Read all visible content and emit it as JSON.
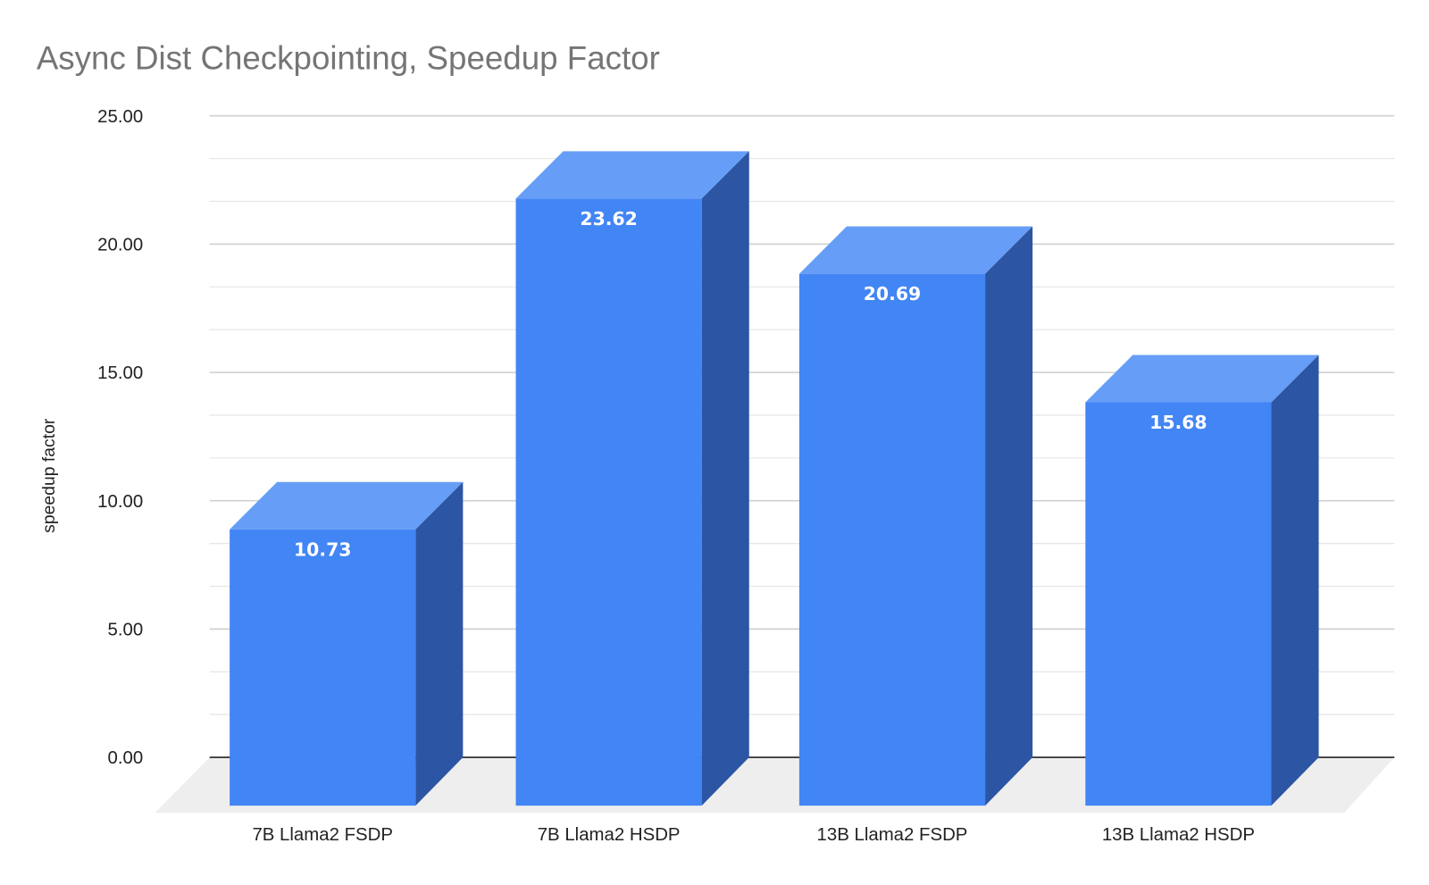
{
  "chart_data": {
    "type": "bar",
    "style": "3d",
    "title": "Async Dist Checkpointing, Speedup Factor",
    "xlabel": "",
    "ylabel": "speedup factor",
    "categories": [
      "7B Llama2 FSDP",
      "7B Llama2 HSDP",
      "13B Llama2 FSDP",
      "13B Llama2 HSDP"
    ],
    "values": [
      10.73,
      23.62,
      20.69,
      15.68
    ],
    "data_labels": [
      "10.73",
      "23.62",
      "20.69",
      "15.68"
    ],
    "ylim": [
      0,
      25
    ],
    "yticks": [
      "0.00",
      "5.00",
      "10.00",
      "15.00",
      "20.00",
      "25.00"
    ],
    "grid": true,
    "legend": "none",
    "colors": {
      "front": "#4285f4",
      "top": "#669df6",
      "side": "#2c56a3",
      "floor": "#eeeeee",
      "grid": "#d9d9d9",
      "title": "#757575"
    }
  }
}
